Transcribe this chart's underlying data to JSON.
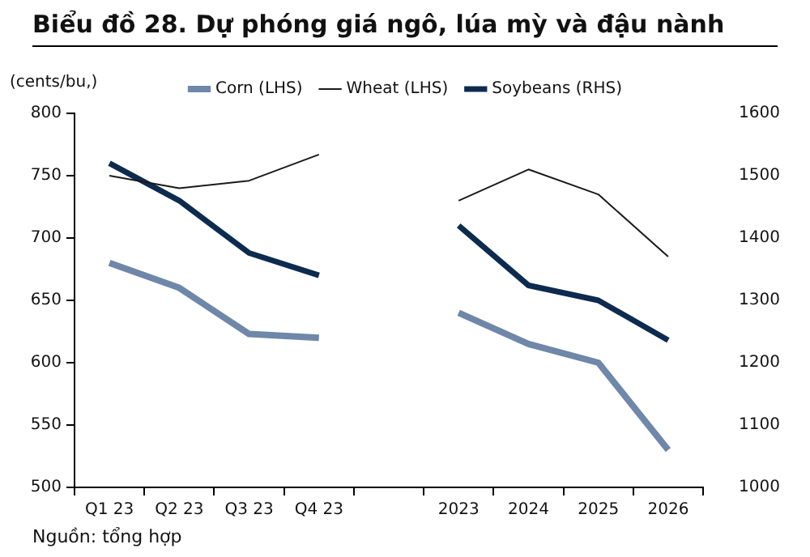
{
  "chart_data": {
    "type": "line",
    "title": "Biểu đồ 28. Dự phóng giá ngô, lúa mỳ và đậu nành",
    "ylabel": "(cents/bu,)",
    "categories": [
      "Q1 23",
      "Q2 23",
      "Q3 23",
      "Q4 23",
      null,
      "2023",
      "2024",
      "2025",
      "2026"
    ],
    "series": [
      {
        "name": "Corn (LHS)",
        "color": "#6f87a8",
        "values": [
          680,
          660,
          623,
          620,
          null,
          640,
          615,
          600,
          530
        ]
      },
      {
        "name": "Wheat (LHS)",
        "color": "#1a1a1a",
        "values": [
          750,
          740,
          746,
          767,
          null,
          730,
          755,
          735,
          685
        ]
      },
      {
        "name": "Soybeans (RHS)",
        "color": "#0d2b4e",
        "axis": "y2",
        "values": [
          1520,
          1460,
          1376,
          1340,
          null,
          1420,
          1324,
          1300,
          1236
        ]
      }
    ],
    "ylim": [
      500,
      800
    ],
    "yticks": [
      500,
      550,
      600,
      650,
      700,
      750,
      800
    ],
    "y2lim": [
      1000,
      1600
    ],
    "y2ticks": [
      1000,
      1100,
      1200,
      1300,
      1400,
      1500,
      1600
    ],
    "grid": false,
    "legend": "top",
    "marker": "none",
    "line_style": "solid",
    "annotations": [
      "Nguồn: tổng hợp"
    ]
  }
}
